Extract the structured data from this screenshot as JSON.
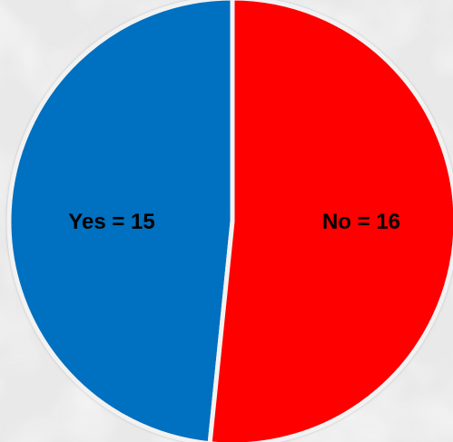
{
  "chart_data": {
    "type": "pie",
    "title": "",
    "categories": [
      "Yes",
      "No"
    ],
    "values": [
      15,
      16
    ],
    "labels": [
      "Yes = 15",
      "No = 16"
    ],
    "colors": [
      "#0070c0",
      "#ff0000"
    ],
    "legend": "none",
    "start": "top",
    "direction": "counterclockwise"
  }
}
